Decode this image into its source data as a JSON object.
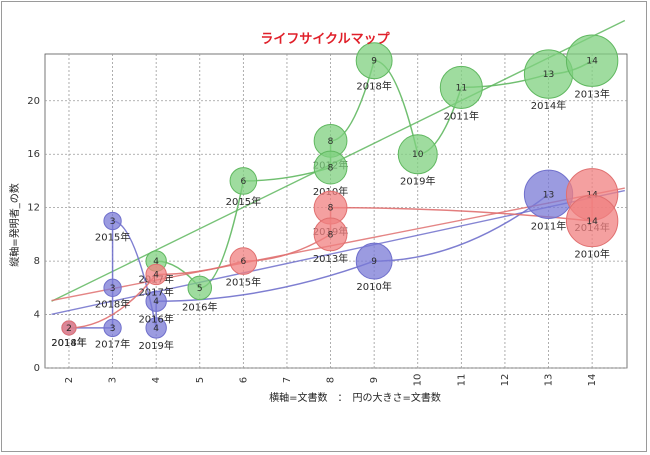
{
  "chart_data": {
    "type": "scatter",
    "title": "ライフサイクルマップ",
    "xlabel": "横軸=文書数　：　円の大きさ=文書数",
    "ylabel": "縦軸=発明者_の数",
    "x_ticks": [
      2,
      3,
      4,
      5,
      6,
      7,
      8,
      9,
      10,
      11,
      12,
      13,
      14
    ],
    "y_ticks": [
      0,
      4,
      8,
      12,
      16,
      20
    ],
    "xlim": [
      1.45,
      14.8
    ],
    "ylim": [
      0,
      23.5
    ],
    "grid": true,
    "series": [
      {
        "color": "#7fd07f",
        "stroke": "#60b860",
        "points": [
          {
            "year": "2016年",
            "x": 5,
            "y": 6,
            "size": 5
          },
          {
            "year": "2017年",
            "x": 4,
            "y": 8,
            "size": 4
          },
          {
            "year": "2015年",
            "x": 6,
            "y": 14,
            "size": 6
          },
          {
            "year": "2012年",
            "x": 8,
            "y": 17,
            "size": 8
          },
          {
            "year": "2010年",
            "x": 8,
            "y": 15,
            "size": 8
          },
          {
            "year": "2018年",
            "x": 9,
            "y": 23,
            "size": 9
          },
          {
            "year": "2019年",
            "x": 10,
            "y": 16,
            "size": 10
          },
          {
            "year": "2011年",
            "x": 11,
            "y": 21,
            "size": 11
          },
          {
            "year": "2014年",
            "x": 13,
            "y": 22,
            "size": 13
          },
          {
            "year": "2013年",
            "x": 14,
            "y": 23,
            "size": 14
          }
        ]
      },
      {
        "color": "#7a7ad6",
        "stroke": "#7070cc",
        "points": [
          {
            "year": "2014年",
            "x": 2,
            "y": 3,
            "size": 2
          },
          {
            "year": "2017年",
            "x": 3,
            "y": 3,
            "size": 3
          },
          {
            "year": "2018年",
            "x": 3,
            "y": 6,
            "size": 3
          },
          {
            "year": "2015年",
            "x": 3,
            "y": 11,
            "size": 3
          },
          {
            "year": "2019年",
            "x": 4,
            "y": 3,
            "size": 4
          },
          {
            "year": "2016年",
            "x": 4,
            "y": 5,
            "size": 4
          },
          {
            "year": "2010年",
            "x": 9,
            "y": 8,
            "size": 9
          },
          {
            "year": "2011年",
            "x": 13,
            "y": 13,
            "size": 13
          }
        ]
      },
      {
        "color": "#f08080",
        "stroke": "#e07070",
        "points": [
          {
            "year": "2018年",
            "x": 2,
            "y": 3,
            "size": 2
          },
          {
            "year": "2017年",
            "x": 4,
            "y": 7,
            "size": 4
          },
          {
            "year": "2015年",
            "x": 6,
            "y": 8,
            "size": 6
          },
          {
            "year": "2019年",
            "x": 8,
            "y": 12,
            "size": 8
          },
          {
            "year": "2013年",
            "x": 8,
            "y": 10,
            "size": 8
          },
          {
            "year": "2014年",
            "x": 14,
            "y": 13,
            "size": 14
          },
          {
            "year": "2010年",
            "x": 14,
            "y": 11,
            "size": 14
          }
        ]
      }
    ]
  }
}
